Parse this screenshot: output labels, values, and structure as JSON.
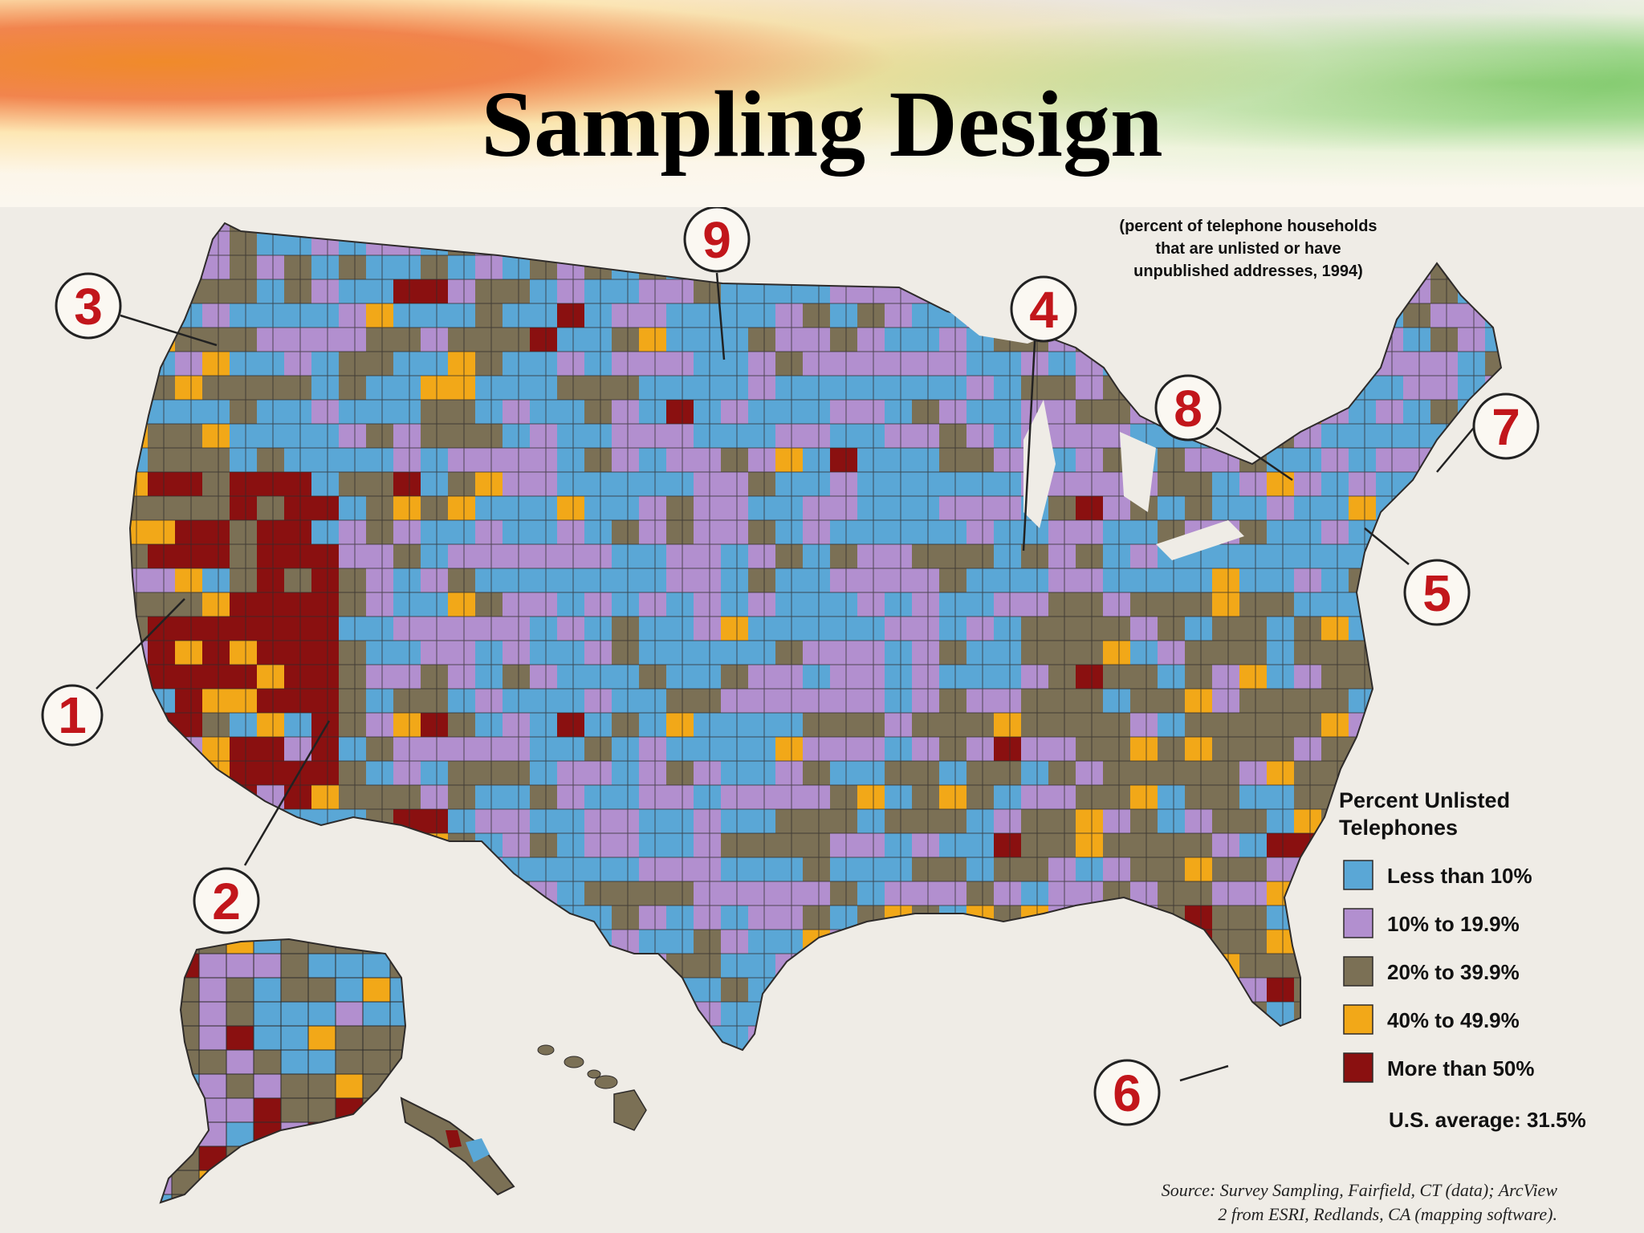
{
  "slide": {
    "title": "Sampling Design"
  },
  "map": {
    "note": {
      "line1": "(percent of telephone households",
      "line2": "that are unlisted or have",
      "line3": "unpublished addresses, 1994)"
    },
    "legend": {
      "title_line1": "Percent Unlisted",
      "title_line2": "Telephones",
      "items": [
        {
          "label": "Less than 10%",
          "color": "#5aa7d6"
        },
        {
          "label": "10% to 19.9%",
          "color": "#b28fcf"
        },
        {
          "label": "20% to 39.9%",
          "color": "#7b7055"
        },
        {
          "label": "40% to 49.9%",
          "color": "#f2a818"
        },
        {
          "label": "More than 50%",
          "color": "#8a1010"
        }
      ],
      "average": "U.S. average: 31.5%"
    },
    "source": {
      "line1": "Source: Survey Sampling, Fairfield, CT (data); ArcView",
      "line2": "2 from ESRI, Redlands, CA (mapping software)."
    },
    "callouts": [
      "1",
      "2",
      "3",
      "4",
      "5",
      "6",
      "7",
      "8",
      "9"
    ]
  }
}
